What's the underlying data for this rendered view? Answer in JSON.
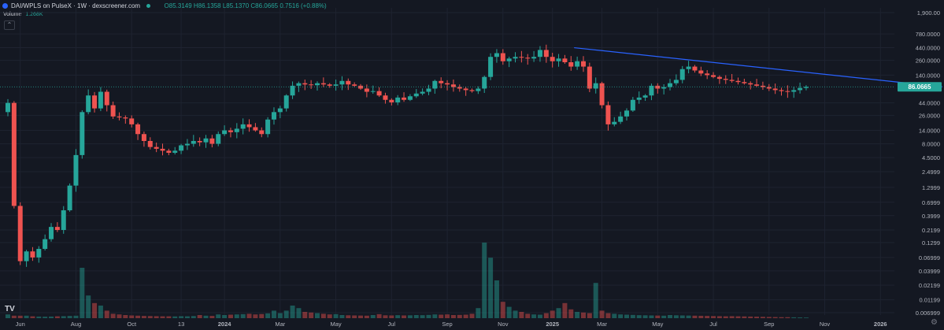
{
  "header": {
    "symbol": "DAI/WPLS on PulseX · 1W · dexscreener.com",
    "ohlc": "O85.3149 H86.1358 L85.1370 C86.0665 0.7516 (+0.88%)",
    "volume_label": "Volume",
    "volume_value": "1.268K",
    "collapse_icon": "chevron-up-icon",
    "logo": "TV"
  },
  "colors": {
    "up": "#26a69a",
    "down": "#ef5350",
    "trendline": "#2962ff",
    "price_badge": "#26a69a",
    "background": "#141822"
  },
  "chart_data": {
    "type": "candlestick",
    "y_scale": "log",
    "grid": true,
    "current_price": "86.0665",
    "y_ticks": [
      "1,900.00",
      "780.0000",
      "440.0000",
      "260.0000",
      "140.0000",
      "44.0000",
      "26.0000",
      "14.0000",
      "8.0000",
      "4.5000",
      "2.4999",
      "1.2999",
      "0.6999",
      "0.3999",
      "0.2199",
      "0.1299",
      "0.06999",
      "0.03999",
      "0.02199",
      "0.01199",
      "0.006999"
    ],
    "y_tick_values": [
      1900,
      780,
      440,
      260,
      140,
      44,
      26,
      14,
      8,
      4.5,
      2.4999,
      1.2999,
      0.6999,
      0.3999,
      0.2199,
      0.1299,
      0.06999,
      0.03999,
      0.02199,
      0.01199,
      0.006999
    ],
    "x_ticks": [
      "Jun",
      "Aug",
      "Oct",
      "13",
      "2024",
      "Mar",
      "May",
      "Jul",
      "Sep",
      "Nov",
      "2025",
      "Mar",
      "May",
      "Jul",
      "Sep",
      "Nov",
      "2026"
    ],
    "x_tick_week_index": [
      2,
      11,
      20,
      28,
      35,
      44,
      53,
      62,
      71,
      80,
      88,
      96,
      105,
      114,
      123,
      132,
      141
    ],
    "trendline": {
      "from": {
        "week": 91.5,
        "price": 440
      },
      "to": {
        "week": 151,
        "price": 86
      }
    },
    "closes": [
      44,
      0.6,
      0.06,
      0.09,
      0.07,
      0.1,
      0.15,
      0.25,
      0.22,
      0.5,
      1.4,
      5,
      30,
      60,
      35,
      70,
      40,
      25,
      24,
      23,
      18,
      12,
      9,
      7,
      6.5,
      6,
      5.5,
      6,
      7.5,
      8,
      9,
      8.5,
      10,
      8,
      12,
      14,
      13,
      15,
      18,
      16,
      14,
      12,
      22,
      30,
      35,
      60,
      90,
      100,
      95,
      92,
      100,
      95,
      90,
      95,
      110,
      95,
      90,
      80,
      70,
      72,
      60,
      50,
      45,
      55,
      50,
      58,
      65,
      70,
      80,
      110,
      100,
      95,
      85,
      80,
      75,
      72,
      80,
      130,
      300,
      350,
      250,
      280,
      300,
      290,
      280,
      300,
      400,
      300,
      250,
      280,
      240,
      200,
      250,
      200,
      80,
      100,
      40,
      18,
      20,
      25,
      32,
      50,
      55,
      60,
      90,
      80,
      85,
      100,
      115,
      180,
      200,
      170,
      150,
      140,
      130,
      120,
      115,
      110,
      105,
      100,
      95,
      90,
      85,
      80,
      75,
      72,
      70,
      75,
      82,
      86
    ],
    "volumes": [
      3,
      2,
      2,
      2,
      1.5,
      1.3,
      1.2,
      1.3,
      1.5,
      1.6,
      1.8,
      2,
      40,
      18,
      12,
      10,
      6,
      3.5,
      3,
      2.5,
      2.2,
      2,
      1.8,
      1.7,
      1.6,
      1.5,
      1.5,
      1.4,
      1.6,
      1.5,
      1.7,
      2.5,
      2,
      1.8,
      3,
      2.5,
      2.8,
      3,
      3.2,
      3.5,
      3,
      3.3,
      3.8,
      6,
      4,
      6,
      10,
      8,
      5,
      4.5,
      4,
      3.5,
      3,
      3.2,
      2.5,
      2.3,
      2.2,
      2.1,
      2,
      2.5,
      3.2,
      2.3,
      2.2,
      2.4,
      2.2,
      2.3,
      2.5,
      2.4,
      2.6,
      3,
      2.8,
      3,
      2.5,
      2.6,
      2.8,
      3.5,
      8,
      60,
      48,
      30,
      13,
      9,
      6,
      5,
      3.5,
      3,
      2.8,
      4,
      6,
      8,
      12,
      7,
      5,
      4.5,
      4,
      28,
      6,
      4,
      3.5,
      3,
      2.8,
      2.6,
      2.4,
      2.3,
      2.2,
      2.1,
      2,
      2.5,
      2.3,
      2.2,
      2.1,
      2,
      1.9,
      1.8,
      1.7,
      1.6,
      1.5,
      1.6,
      1.5,
      1.4,
      1.3,
      1.2,
      1.1,
      1.0,
      0.9,
      0.8,
      0.8,
      0.7,
      0.6,
      0.5
    ]
  }
}
